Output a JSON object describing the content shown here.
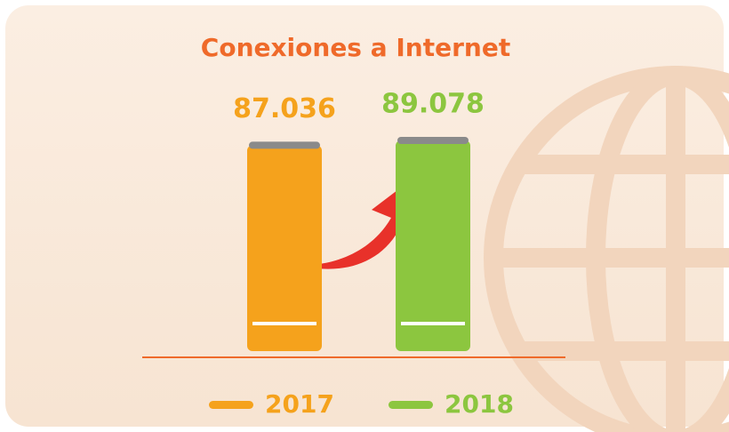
{
  "chart_data": {
    "type": "bar",
    "title": "Conexiones a Internet",
    "categories": [
      "2017",
      "2018"
    ],
    "values": [
      87036,
      89078
    ],
    "value_labels": [
      "87.036",
      "89.078"
    ],
    "colors": [
      "#f5a21c",
      "#8cc63f"
    ]
  }
}
